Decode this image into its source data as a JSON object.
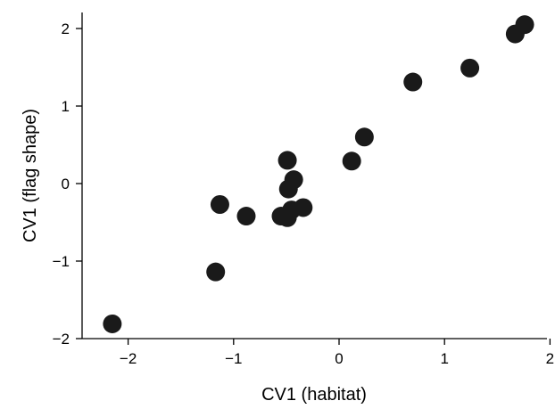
{
  "chart_data": {
    "type": "scatter",
    "title": "",
    "xlabel": "CV1 (habitat)",
    "ylabel": "CV1 (flag shape)",
    "xlim": [
      -2.5,
      2
    ],
    "ylim": [
      -2,
      2.2
    ],
    "xticks": [
      -2,
      -1,
      0,
      1,
      2
    ],
    "yticks": [
      -2,
      -1,
      0,
      1,
      2
    ],
    "xtick_labels": [
      "−2",
      "−1",
      "0",
      "1",
      "2"
    ],
    "ytick_labels": [
      "−2",
      "−1",
      "0",
      "1",
      "2"
    ],
    "grid": false,
    "legend": "none",
    "marker_color": "#1a1a1a",
    "series": [
      {
        "x": [
          -2.15,
          -1.17,
          -1.13,
          -0.88,
          -0.55,
          -0.49,
          -0.48,
          -0.45,
          -0.43,
          -0.49,
          -0.34,
          0.12,
          0.24,
          0.7,
          1.24,
          1.67,
          1.76
        ],
        "y": [
          -1.81,
          -1.14,
          -0.27,
          -0.42,
          -0.42,
          -0.44,
          -0.07,
          -0.34,
          0.05,
          0.3,
          -0.31,
          0.29,
          0.6,
          1.31,
          1.49,
          1.93,
          2.05
        ]
      }
    ]
  }
}
